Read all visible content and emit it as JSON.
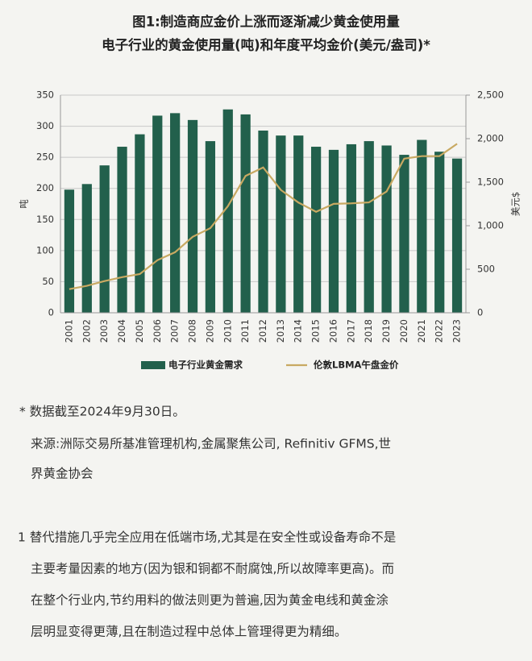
{
  "chart_data": {
    "type": "bar-line",
    "title": "图1:制造商应金价上涨而逐渐减少黄金使用量",
    "subtitle": "电子行业的黄金使用量(吨)和年度平均金价(美元/盎司)*",
    "y_label": "吨",
    "y2_label": "美元$",
    "categories": [
      "2001",
      "2002",
      "2003",
      "2004",
      "2005",
      "2006",
      "2007",
      "2008",
      "2009",
      "2010",
      "2011",
      "2012",
      "2013",
      "2014",
      "2015",
      "2016",
      "2017",
      "2018",
      "2019",
      "2020",
      "2021",
      "2022",
      "2023"
    ],
    "series": [
      {
        "name": "电子行业黄金需求",
        "color": "#22604c",
        "kind": "bar",
        "values": [
          198,
          207,
          237,
          267,
          287,
          317,
          321,
          310,
          276,
          327,
          319,
          293,
          285,
          285,
          267,
          262,
          271,
          276,
          269,
          254,
          278,
          259,
          248
        ]
      },
      {
        "name": "伦敦LBMA午盘金价",
        "color": "#c8a962",
        "kind": "line",
        "axis": "y2",
        "values": [
          271,
          310,
          364,
          409,
          445,
          604,
          695,
          872,
          972,
          1225,
          1572,
          1669,
          1411,
          1266,
          1160,
          1251,
          1257,
          1268,
          1393,
          1770,
          1799,
          1800,
          1941
        ]
      }
    ],
    "ylim": [
      0,
      350
    ],
    "yticks": [
      0,
      50,
      100,
      150,
      200,
      250,
      300,
      350
    ],
    "y2lim": [
      0,
      2500
    ],
    "y2ticks": [
      0,
      500,
      {
        "value": 1000,
        "label": "1,000"
      },
      {
        "value": 1500,
        "label": "1,500"
      },
      {
        "value": 2000,
        "label": "2,000"
      },
      {
        "value": 2500,
        "label": "2,500"
      }
    ],
    "grid": true
  },
  "notes": {
    "footnote": "* 数据截至2024年9月30日。",
    "source": [
      "来源:洲际交易所基准管理机构,金属聚焦公司, Refinitiv GFMS,世",
      "界黄金协会"
    ],
    "paragraph": [
      "1 替代措施几乎完全应用在低端市场,尤其是在安全性或设备寿命不是",
      "主要考量因素的地方(因为银和铜都不耐腐蚀,所以故障率更高)。而",
      "在整个行业内,节约用料的做法则更为普遍,因为黄金电线和黄金涂",
      "层明显变得更薄,且在制造过程中总体上管理得更为精细。"
    ]
  }
}
